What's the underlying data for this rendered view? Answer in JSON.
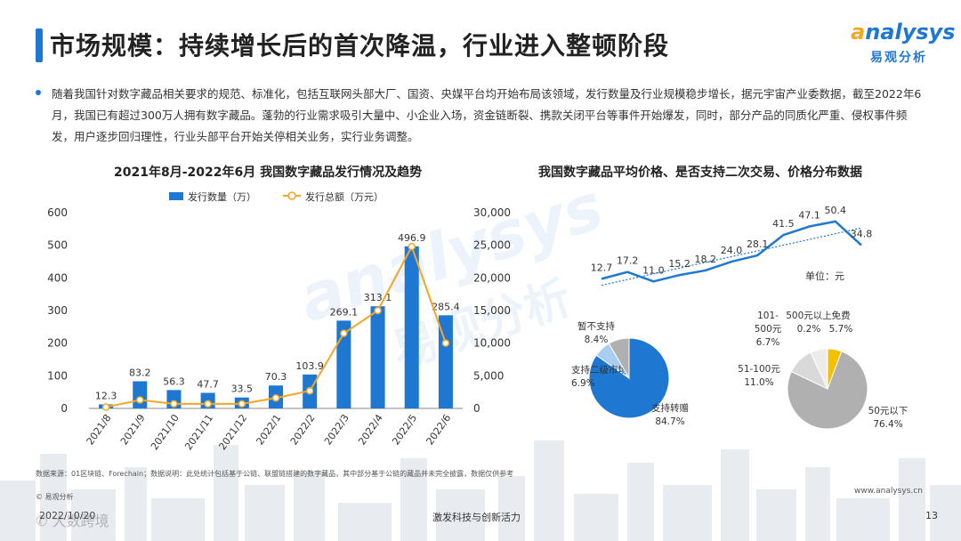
{
  "header": {
    "title": "市场规模：持续增长后的首次降温，行业进入整顿阶段",
    "logo_en_first": "a",
    "logo_en_rest": "nalysys",
    "logo_cn": "易观分析"
  },
  "intro": "随着我国针对数字藏品相关要求的规范、标准化，包括互联网头部大厂、国资、央媒平台均开始布局该领域，发行数量及行业规模稳步增长，据元宇宙产业委数据，截至2022年6月，我国已有超过300万人拥有数字藏品。蓬勃的行业需求吸引大量中、小企业入场，资金链断裂、携款关闭平台等事件开始爆发，同时，部分产品的同质化严重、侵权事件频发，用户逐步回归理性，行业头部平台开始关停相关业务，实行业务调整。",
  "colors": {
    "blue": "#1e78d2",
    "orange": "#f5a623",
    "gray": "#b0b0b0",
    "light_blue": "#a8cdf0"
  },
  "chart_data": [
    {
      "type": "bar",
      "title": "2021年8月-2022年6月 我国数字藏品发行情况及趋势",
      "categories": [
        "2021/8",
        "2021/9",
        "2021/10",
        "2021/11",
        "2021/12",
        "2022/1",
        "2022/2",
        "2022/3",
        "2022/4",
        "2022/5",
        "2022/6"
      ],
      "series": [
        {
          "name": "发行数量（万）",
          "type": "bar",
          "axis": "left",
          "values": [
            12.3,
            83.2,
            56.3,
            47.7,
            33.5,
            70.3,
            103.9,
            269.1,
            313.1,
            496.9,
            285.4
          ]
        },
        {
          "name": "发行总额（万元）",
          "type": "line",
          "axis": "right",
          "values": [
            200,
            1300,
            700,
            700,
            700,
            1600,
            2700,
            11500,
            15000,
            24800,
            10000
          ]
        }
      ],
      "ylim_left": [
        0,
        600
      ],
      "yticks_left": [
        "0",
        "100",
        "200",
        "300",
        "400",
        "500",
        "600"
      ],
      "ylim_right": [
        0,
        30000
      ],
      "yticks_right": [
        "0",
        "5,000",
        "10,000",
        "15,000",
        "20,000",
        "25,000",
        "30,000"
      ],
      "legend": "top"
    },
    {
      "type": "line",
      "title": "我国数字藏品平均价格、是否支持二次交易、价格分布数据",
      "unit_label": "单位：元",
      "values": [
        12.7,
        17.2,
        11.0,
        15.2,
        18.2,
        24.0,
        28.1,
        41.5,
        47.1,
        50.4,
        34.8
      ],
      "labels": [
        "12.7",
        "17.2",
        "11.0",
        "15.2",
        "18.2",
        "24.0",
        "28.1",
        "41.5",
        "47.1",
        "50.4",
        "34.8"
      ],
      "trendline": true
    },
    {
      "type": "pie",
      "slices": [
        {
          "label": "支持转赠",
          "value": 84.7,
          "pct": "84.7%",
          "color": "#1e78d2"
        },
        {
          "label": "支持二级市场",
          "value": 6.9,
          "pct": "6.9%",
          "color": "#a8cdf0"
        },
        {
          "label": "暂不支持",
          "value": 8.4,
          "pct": "8.4%",
          "color": "#b0b0b0"
        }
      ]
    },
    {
      "type": "pie",
      "slices": [
        {
          "label": "50元以下",
          "value": 76.4,
          "pct": "76.4%",
          "color": "#b0b0b0"
        },
        {
          "label": "51-100元",
          "value": 11.0,
          "pct": "11.0%",
          "color": "#d9d9d9"
        },
        {
          "label": "101-500元",
          "label_line1": "101-",
          "label_line2": "500元",
          "value": 6.7,
          "pct": "6.7%",
          "color": "#ececec"
        },
        {
          "label": "500元以上",
          "value": 0.2,
          "pct": "0.2%",
          "color": "#1e78d2"
        },
        {
          "label": "免费",
          "value": 5.7,
          "pct": "5.7%",
          "color": "#f5c000"
        }
      ]
    }
  ],
  "footer": {
    "source": "数据来源：01区块链、Forechain；数据说明：此处统计包括基于公链、联盟链搭建的数字藏品，其中部分基于公链的藏品并未完全披露，数据仅供参考",
    "copyright": "© 易观分析",
    "site": "www.analysys.cn",
    "slogan": "激发科技与创新活力",
    "page": "13",
    "date": "2022/10/20",
    "watermark": "✆ 大数跨境"
  }
}
